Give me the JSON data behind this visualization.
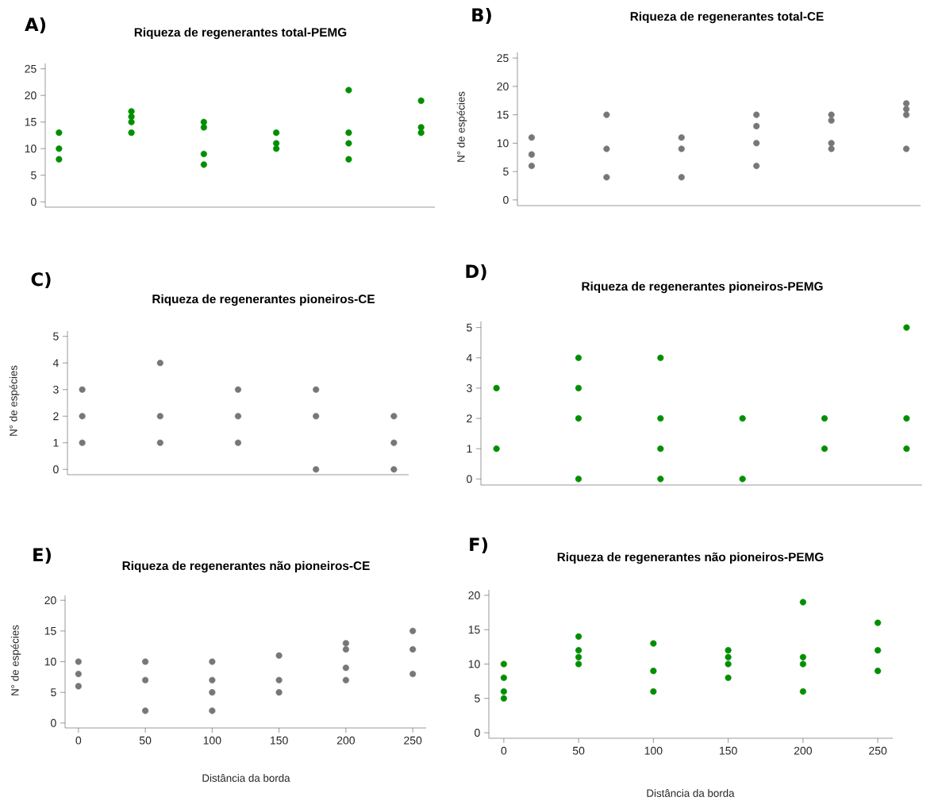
{
  "chart_data": [
    {
      "type": "scatter",
      "title": "Riqueza de regenerantes total-PEMG",
      "annotations": [
        "A)"
      ],
      "categories": [
        null,
        null,
        null,
        null,
        null,
        null
      ],
      "marker": "circle",
      "tick_labels": "y",
      "ylim": [
        -1,
        26
      ],
      "yticks": [
        0,
        5,
        10,
        15,
        20,
        25
      ],
      "series": [
        {
          "color": "#008f00",
          "values": [
            13,
            17,
            15,
            13,
            21,
            19
          ]
        },
        {
          "color": "#008f00",
          "values": [
            10,
            16,
            14,
            11,
            13,
            14
          ]
        },
        {
          "color": "#008f00",
          "values": [
            8,
            15,
            9,
            10,
            11,
            13
          ]
        },
        {
          "color": "#008f00",
          "values": [
            null,
            13,
            7,
            null,
            8,
            null
          ]
        }
      ]
    },
    {
      "type": "scatter",
      "title": "Riqueza de regenerantes total-CE",
      "ylabel": "N° de espécies",
      "annotations": [
        "B)"
      ],
      "categories": [
        null,
        null,
        null,
        null,
        null,
        null
      ],
      "marker": "circle",
      "tick_labels": "y",
      "ylim": [
        -1,
        26
      ],
      "yticks": [
        0,
        5,
        10,
        15,
        20,
        25
      ],
      "series": [
        {
          "color": "#777777",
          "values": [
            11,
            15,
            11,
            15,
            15,
            17
          ]
        },
        {
          "color": "#777777",
          "values": [
            8,
            9,
            9,
            13,
            14,
            16
          ]
        },
        {
          "color": "#777777",
          "values": [
            6,
            4,
            4,
            10,
            10,
            15
          ]
        },
        {
          "color": "#777777",
          "values": [
            null,
            null,
            null,
            6,
            9,
            9
          ]
        }
      ]
    },
    {
      "type": "scatter",
      "title": "Riqueza de regenerantes pioneiros-CE",
      "ylabel": "N° de espécies",
      "annotations": [
        "C)"
      ],
      "categories": [
        null,
        null,
        null,
        null,
        null
      ],
      "marker": "circle",
      "tick_labels": "y",
      "ylim": [
        -0.2,
        5.2
      ],
      "yticks": [
        0,
        1,
        2,
        3,
        4,
        5
      ],
      "series": [
        {
          "color": "#777777",
          "values": [
            3,
            4,
            3,
            3,
            2
          ]
        },
        {
          "color": "#777777",
          "values": [
            2,
            2,
            2,
            2,
            1
          ]
        },
        {
          "color": "#777777",
          "values": [
            1,
            1,
            1,
            0,
            0
          ]
        }
      ]
    },
    {
      "type": "scatter",
      "title": "Riqueza de regenerantes pioneiros-PEMG",
      "annotations": [
        "D)"
      ],
      "categories": [
        null,
        null,
        null,
        null,
        null,
        null
      ],
      "marker": "circle",
      "tick_labels": "y",
      "ylim": [
        -0.2,
        5.2
      ],
      "yticks": [
        0,
        1,
        2,
        3,
        4,
        5
      ],
      "series": [
        {
          "color": "#008f00",
          "values": [
            3,
            4,
            4,
            2,
            2,
            5
          ]
        },
        {
          "color": "#008f00",
          "values": [
            1,
            3,
            2,
            0,
            1,
            2
          ]
        },
        {
          "color": "#008f00",
          "values": [
            null,
            2,
            1,
            null,
            null,
            1
          ]
        },
        {
          "color": "#008f00",
          "values": [
            null,
            0,
            0,
            null,
            null,
            null
          ]
        }
      ]
    },
    {
      "type": "scatter",
      "title": "Riqueza de regenerantes não pioneiros-CE",
      "xlabel": "Distância da borda",
      "ylabel": "N° de espécies",
      "annotations": [
        "E)"
      ],
      "marker": "circle",
      "xlim": [
        -10,
        260
      ],
      "xticks": [
        0,
        50,
        100,
        150,
        200,
        250
      ],
      "ylim": [
        -0.8,
        20.8
      ],
      "yticks": [
        0,
        5,
        10,
        15,
        20
      ],
      "series": [
        {
          "color": "#777777",
          "x": [
            0,
            0,
            0,
            50,
            50,
            50,
            100,
            100,
            100,
            100,
            150,
            150,
            150,
            200,
            200,
            200,
            200,
            250,
            250,
            250
          ],
          "values": [
            10,
            8,
            6,
            10,
            7,
            2,
            10,
            7,
            5,
            2,
            11,
            7,
            5,
            13,
            12,
            9,
            7,
            15,
            12,
            8
          ]
        }
      ]
    },
    {
      "type": "scatter",
      "title": "Riqueza de regenerantes não pioneiros-PEMG",
      "xlabel": "Distância da borda",
      "annotations": [
        "F)"
      ],
      "marker": "circle",
      "xlim": [
        -10,
        260
      ],
      "xticks": [
        0,
        50,
        100,
        150,
        200,
        250
      ],
      "ylim": [
        -0.8,
        20.8
      ],
      "yticks": [
        0,
        5,
        10,
        15,
        20
      ],
      "series": [
        {
          "color": "#008f00",
          "x": [
            0,
            0,
            0,
            0,
            50,
            50,
            50,
            50,
            100,
            100,
            100,
            150,
            150,
            150,
            150,
            200,
            200,
            200,
            200,
            250,
            250,
            250
          ],
          "values": [
            10,
            8,
            6,
            5,
            14,
            12,
            11,
            10,
            13,
            9,
            6,
            12,
            11,
            10,
            8,
            19,
            11,
            10,
            6,
            16,
            12,
            9
          ]
        }
      ]
    }
  ]
}
